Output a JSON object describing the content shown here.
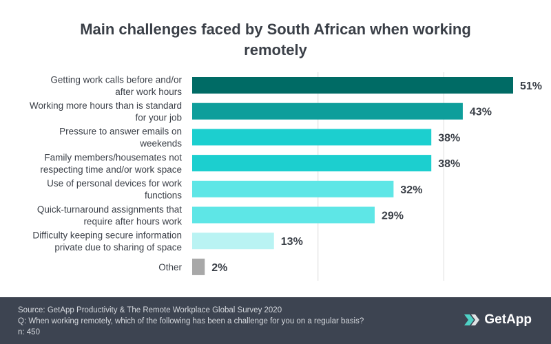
{
  "chart_data": {
    "type": "bar",
    "orientation": "horizontal",
    "title_line1": "Main challenges faced by South African when working",
    "title_line2": "remotely",
    "categories": [
      [
        "Getting work calls before and/or",
        "after work hours"
      ],
      [
        "Working more hours than is standard",
        "for your job"
      ],
      [
        "Pressure to answer emails on",
        "weekends"
      ],
      [
        "Family members/housemates not",
        "respecting time and/or work space"
      ],
      [
        "Use of personal devices for work",
        "functions"
      ],
      [
        "Quick-turnaround assignments that",
        "require after hours work"
      ],
      [
        "Difficulty keeping secure information",
        "private due to sharing of space"
      ],
      [
        "Other"
      ]
    ],
    "values": [
      51,
      43,
      38,
      38,
      32,
      29,
      13,
      2
    ],
    "value_labels": [
      "51%",
      "43%",
      "38%",
      "38%",
      "32%",
      "29%",
      "13%",
      "2%"
    ],
    "colors": [
      "#006b65",
      "#0e9e9b",
      "#1ccfcf",
      "#1ccfcf",
      "#5ee6e6",
      "#5ee6e6",
      "#b9f3f3",
      "#a8a8a8"
    ],
    "xlim": [
      0,
      60
    ],
    "gridlines": [
      20,
      40
    ],
    "xlabel": "",
    "ylabel": ""
  },
  "footer": {
    "source": "Source: GetApp Productivity & The Remote Workplace Global Survey 2020",
    "question": "Q: When working remotely, which of the following has been a challenge for you on a regular basis?",
    "n": "n: 450",
    "brand": "GetApp"
  }
}
